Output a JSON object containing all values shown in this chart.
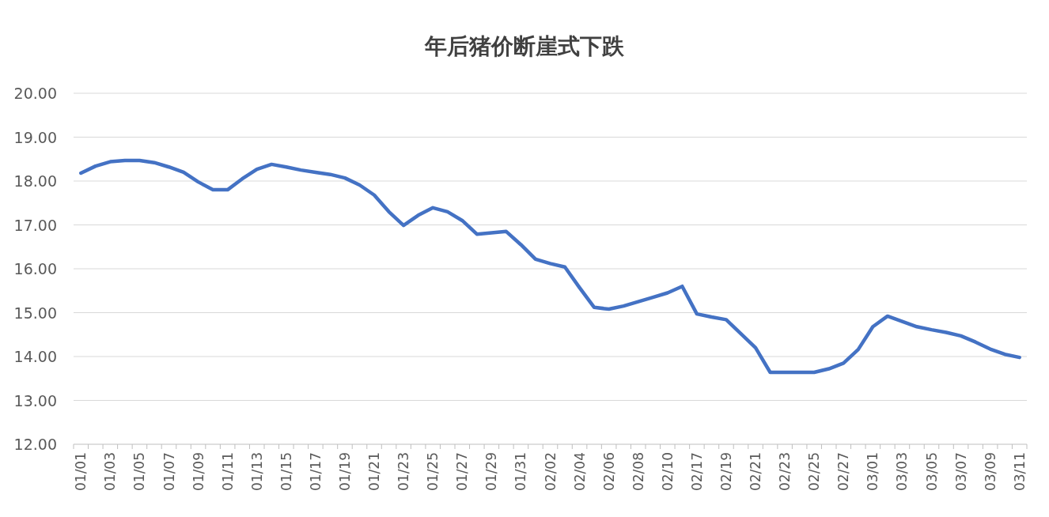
{
  "chart_data": {
    "type": "line",
    "title": "年后猪价断崖式下跌",
    "categories": [
      "01/01",
      null,
      "01/03",
      null,
      "01/05",
      null,
      "01/07",
      null,
      "01/09",
      null,
      "01/11",
      null,
      "01/13",
      null,
      "01/15",
      null,
      "01/17",
      null,
      "01/19",
      null,
      "01/21",
      null,
      "01/23",
      null,
      "01/25",
      null,
      "01/27",
      null,
      "01/29",
      null,
      "01/31",
      null,
      "02/02",
      null,
      "02/04",
      null,
      "02/06",
      null,
      "02/08",
      null,
      "02/10",
      null,
      "02/17",
      null,
      "02/19",
      null,
      "02/21",
      null,
      "02/23",
      null,
      "02/25",
      null,
      "02/27",
      null,
      "03/01",
      null,
      "03/03",
      null,
      "03/05",
      null,
      "03/07",
      null,
      "03/09",
      null,
      "03/11"
    ],
    "values": [
      18.18,
      18.34,
      18.44,
      18.47,
      18.47,
      18.42,
      18.32,
      18.2,
      17.98,
      17.8,
      17.8,
      18.05,
      18.27,
      18.38,
      18.32,
      18.25,
      18.2,
      18.15,
      18.07,
      17.91,
      17.68,
      17.3,
      16.99,
      17.22,
      17.39,
      17.3,
      17.1,
      16.79,
      16.82,
      16.85,
      16.55,
      16.22,
      16.12,
      16.04,
      15.57,
      15.12,
      15.08,
      15.15,
      15.25,
      15.35,
      15.45,
      15.6,
      14.97,
      14.9,
      14.84,
      14.52,
      14.2,
      13.64,
      13.64,
      13.64,
      13.64,
      13.72,
      13.85,
      14.16,
      14.68,
      14.92,
      14.8,
      14.68,
      14.61,
      14.55,
      14.47,
      14.33,
      14.17,
      14.05,
      13.98
    ],
    "color": "#4472c4",
    "ylim": [
      12,
      20
    ],
    "yticks": [
      {
        "value": 12,
        "label": "12.00"
      },
      {
        "value": 13,
        "label": "13.00"
      },
      {
        "value": 14,
        "label": "14.00"
      },
      {
        "value": 15,
        "label": "15.00"
      },
      {
        "value": 16,
        "label": "16.00"
      },
      {
        "value": 17,
        "label": "17.00"
      },
      {
        "value": 18,
        "label": "18.00"
      },
      {
        "value": 19,
        "label": "19.00"
      },
      {
        "value": 20,
        "label": "20.00"
      }
    ],
    "grid": "y"
  }
}
